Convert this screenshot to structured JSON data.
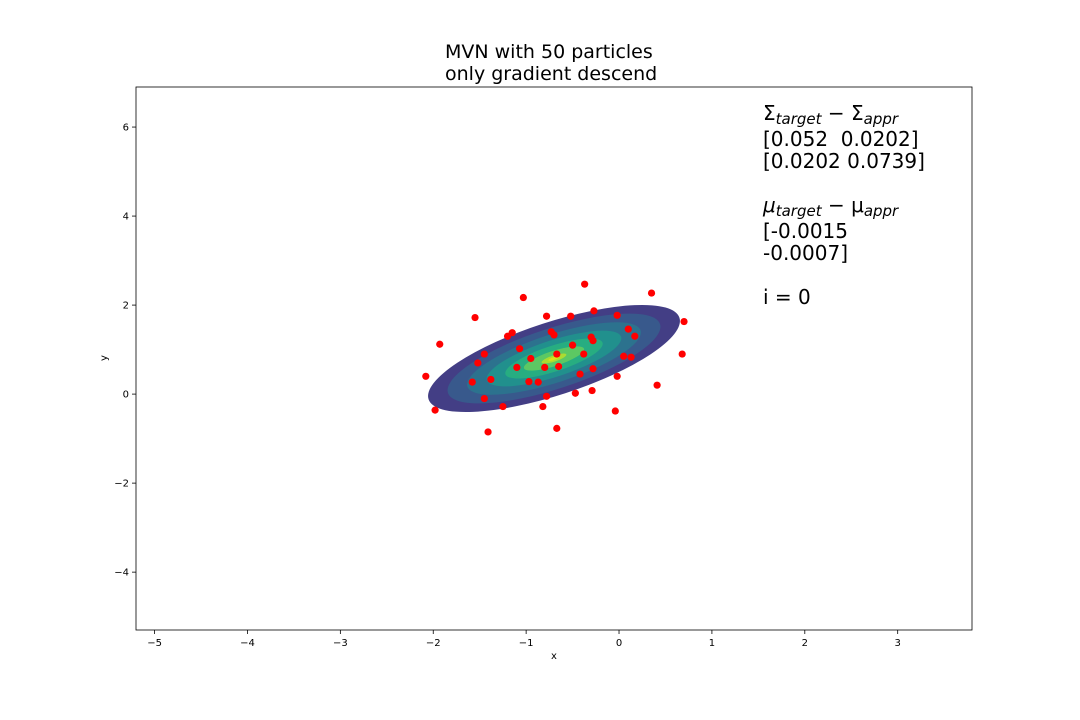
{
  "chart_data": {
    "type": "scatter",
    "title_lines": [
      "MVN with 50 particles",
      "only gradient descend"
    ],
    "xlabel": "x",
    "ylabel": "y",
    "xlim": [
      -5.2,
      3.8
    ],
    "ylim": [
      -5.3,
      6.9
    ],
    "x_ticks": [
      -5,
      -4,
      -3,
      -2,
      -1,
      0,
      1,
      2,
      3
    ],
    "y_ticks": [
      -4,
      -2,
      0,
      2,
      4,
      6
    ],
    "x_tick_labels": [
      "−5",
      "−4",
      "−3",
      "−2",
      "−1",
      "0",
      "1",
      "2",
      "3"
    ],
    "y_tick_labels": [
      "−4",
      "−2",
      "0",
      "2",
      "4",
      "6"
    ],
    "grid": false,
    "contour": {
      "center": [
        -0.7,
        0.8
      ],
      "levels_semi_axes": [
        [
          1.42,
          0.82
        ],
        [
          1.2,
          0.68
        ],
        [
          0.98,
          0.54
        ],
        [
          0.76,
          0.41
        ],
        [
          0.55,
          0.29
        ],
        [
          0.34,
          0.17
        ],
        [
          0.14,
          0.07
        ]
      ],
      "rotation_deg": 18,
      "colors": [
        "#433e85",
        "#38598c",
        "#2c728e",
        "#21908d",
        "#27ad81",
        "#5cc863",
        "#aadc32",
        "#dde318"
      ]
    },
    "particles": {
      "color": "#ff0000",
      "points": [
        [
          -0.37,
          2.47
        ],
        [
          0.35,
          2.27
        ],
        [
          -1.03,
          2.17
        ],
        [
          0.7,
          1.63
        ],
        [
          -1.55,
          1.72
        ],
        [
          -0.27,
          1.87
        ],
        [
          -0.78,
          1.75
        ],
        [
          -0.52,
          1.75
        ],
        [
          -0.02,
          1.77
        ],
        [
          -1.15,
          1.38
        ],
        [
          -1.2,
          1.3
        ],
        [
          -0.73,
          1.4
        ],
        [
          0.1,
          1.46
        ],
        [
          -0.7,
          1.33
        ],
        [
          -0.3,
          1.28
        ],
        [
          -0.28,
          1.2
        ],
        [
          0.17,
          1.3
        ],
        [
          -1.93,
          1.12
        ],
        [
          -0.5,
          1.1
        ],
        [
          -1.07,
          1.02
        ],
        [
          -1.45,
          0.9
        ],
        [
          -0.38,
          0.9
        ],
        [
          -0.67,
          0.9
        ],
        [
          0.05,
          0.85
        ],
        [
          0.13,
          0.83
        ],
        [
          0.68,
          0.9
        ],
        [
          -0.95,
          0.8
        ],
        [
          -1.52,
          0.7
        ],
        [
          -1.1,
          0.6
        ],
        [
          -0.8,
          0.6
        ],
        [
          -0.65,
          0.62
        ],
        [
          -0.28,
          0.57
        ],
        [
          -0.42,
          0.45
        ],
        [
          -0.02,
          0.4
        ],
        [
          -2.08,
          0.4
        ],
        [
          -1.38,
          0.33
        ],
        [
          -0.97,
          0.28
        ],
        [
          -0.87,
          0.27
        ],
        [
          -1.58,
          0.27
        ],
        [
          0.41,
          0.2
        ],
        [
          -0.29,
          0.08
        ],
        [
          -0.47,
          0.02
        ],
        [
          -0.78,
          -0.05
        ],
        [
          -1.45,
          -0.1
        ],
        [
          -1.25,
          -0.28
        ],
        [
          -0.82,
          -0.28
        ],
        [
          -1.98,
          -0.36
        ],
        [
          -0.04,
          -0.38
        ],
        [
          -0.67,
          -0.77
        ],
        [
          -1.41,
          -0.85
        ]
      ]
    },
    "annotation": {
      "sigma_line": [
        "Σ",
        "target",
        " − Σ",
        "appr"
      ],
      "sigma_row1": "[0.052  0.0202]",
      "sigma_row2": "[0.0202 0.0739]",
      "mu_line": [
        "μ",
        "target",
        " − μ",
        "appr"
      ],
      "mu_row1": "[-0.0015",
      "mu_row2": "-0.0007]",
      "iter": "i = 0"
    }
  }
}
